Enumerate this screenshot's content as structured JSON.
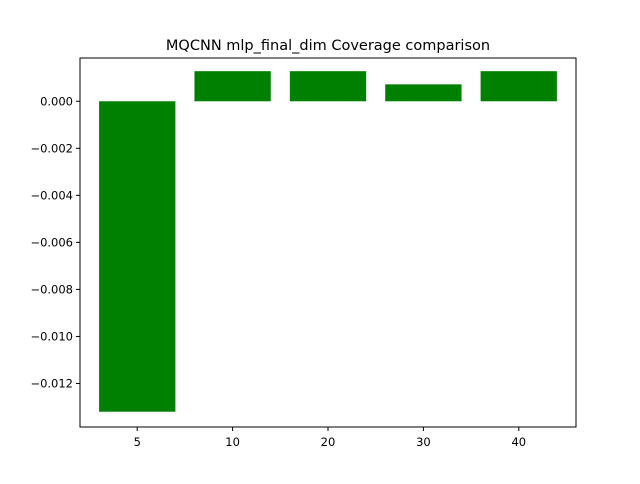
{
  "chart_data": {
    "type": "bar",
    "title": "MQCNN mlp_final_dim Coverage comparison",
    "xlabel": "",
    "ylabel": "",
    "categories": [
      "5",
      "10",
      "20",
      "30",
      "40"
    ],
    "values": [
      -0.0132,
      0.00128,
      0.00128,
      0.00072,
      0.00128
    ],
    "ylim": [
      -0.01385,
      0.00184
    ],
    "yticks": [
      0.0,
      -0.002,
      -0.004,
      -0.006,
      -0.008,
      -0.01,
      -0.012
    ],
    "ytick_labels": [
      "0.000",
      "−0.002",
      "−0.004",
      "−0.006",
      "−0.008",
      "−0.010",
      "−0.012"
    ],
    "bar_color": "#008000",
    "grid": false,
    "legend": "none"
  }
}
